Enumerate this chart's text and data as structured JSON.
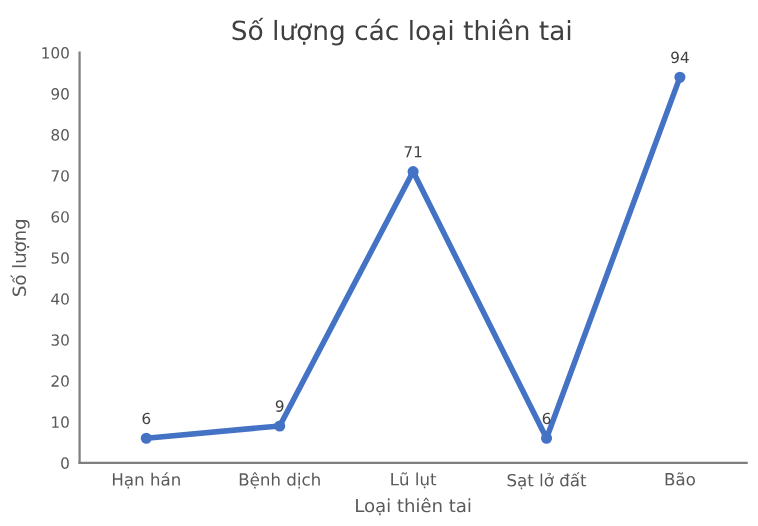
{
  "chart_data": {
    "type": "line",
    "title": "Số lượng các loại thiên tai",
    "xlabel": "Loại thiên tai",
    "ylabel": "Số lượng",
    "categories": [
      "Hạn hán",
      "Bệnh dịch",
      "Lũ lụt",
      "Sạt lở đất",
      "Bão"
    ],
    "series": [
      {
        "color": "#4472c4",
        "values": [
          6,
          9,
          71,
          6,
          94
        ]
      }
    ],
    "ylim": [
      0,
      100
    ],
    "yticks": [
      0,
      10,
      20,
      30,
      40,
      50,
      60,
      70,
      80,
      90,
      100
    ],
    "data_labels": true,
    "marker": "circle",
    "line_style": "solid",
    "grid": false,
    "legend": false
  }
}
